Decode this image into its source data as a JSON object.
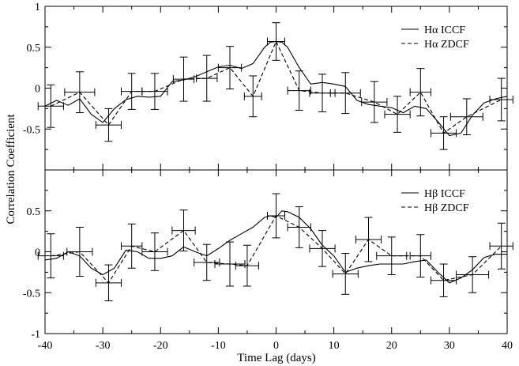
{
  "chart_data": {
    "type": "line",
    "xlabel": "Time Lag (days)",
    "ylabel": "Correlation Coefficient",
    "xlim": [
      -40,
      40
    ],
    "x_ticks": [
      -40,
      -30,
      -20,
      -10,
      0,
      10,
      20,
      30,
      40
    ],
    "x_tick_labels": [
      "-40",
      "-30",
      "-20",
      "-10",
      "0",
      "10",
      "20",
      "30",
      "40"
    ],
    "panels": [
      {
        "id": "halpha",
        "ylim": [
          -1,
          1
        ],
        "y_ticks": [
          1,
          0.5,
          0,
          -0.5
        ],
        "y_tick_labels": [
          "1",
          "0.5",
          "0",
          "-0.5"
        ],
        "legend_position": "top-right",
        "series": [
          {
            "name": "Hα ICCF",
            "style": "solid",
            "x": [
              -40,
              -38,
              -36,
              -34,
              -32,
              -30,
              -28,
              -26,
              -24,
              -22,
              -20,
              -18,
              -16,
              -14,
              -12,
              -10,
              -8,
              -6,
              -4,
              -2,
              -1,
              0,
              1,
              2,
              4,
              6,
              8,
              10,
              12,
              14,
              16,
              18,
              20,
              22,
              24,
              26,
              28,
              30,
              32,
              34,
              36,
              38,
              40
            ],
            "y": [
              -0.22,
              -0.15,
              -0.21,
              -0.13,
              -0.32,
              -0.42,
              -0.25,
              -0.14,
              -0.1,
              -0.11,
              -0.1,
              0.08,
              0.1,
              0.14,
              0.2,
              0.26,
              0.28,
              0.24,
              0.3,
              0.5,
              0.56,
              0.57,
              0.56,
              0.5,
              0.25,
              0.05,
              0.07,
              0.05,
              0.02,
              -0.15,
              -0.2,
              -0.22,
              -0.24,
              -0.3,
              -0.22,
              -0.25,
              -0.41,
              -0.58,
              -0.55,
              -0.33,
              -0.18,
              -0.13,
              -0.1
            ]
          },
          {
            "name": "Hα ZDCF",
            "style": "dashed",
            "x": [
              -39,
              -34,
              -29,
              -25,
              -21,
              -16,
              -12,
              -8,
              -4,
              0,
              4,
              8,
              12,
              17,
              21,
              25,
              29,
              33,
              39
            ],
            "y": [
              -0.22,
              -0.05,
              -0.45,
              -0.04,
              -0.04,
              0.11,
              0.12,
              0.25,
              -0.1,
              0.57,
              -0.03,
              -0.06,
              -0.06,
              -0.17,
              -0.32,
              -0.05,
              -0.55,
              -0.35,
              -0.14
            ],
            "err_y": [
              0.26,
              0.25,
              0.2,
              0.22,
              0.22,
              0.27,
              0.28,
              0.26,
              0.25,
              0.23,
              0.24,
              0.23,
              0.25,
              0.25,
              0.22,
              0.29,
              0.2,
              0.22,
              0.26
            ],
            "err_x": [
              2.2,
              2.6,
              2.2,
              1.8,
              2.2,
              1.8,
              1.8,
              2.0,
              1.5,
              1.5,
              2.0,
              2.2,
              2.6,
              2.2,
              2.2,
              1.8,
              2.2,
              2.8,
              2.0
            ]
          }
        ]
      },
      {
        "id": "hbeta",
        "ylim": [
          -1,
          1
        ],
        "y_ticks": [
          0.5,
          0,
          -0.5,
          -1
        ],
        "y_tick_labels": [
          "0.5",
          "0",
          "-0.5",
          "-1"
        ],
        "legend_position": "top-right",
        "series": [
          {
            "name": "Hβ ICCF",
            "style": "solid",
            "x": [
              -40,
              -38,
              -36,
              -34,
              -32,
              -30,
              -28,
              -26,
              -24,
              -22,
              -20,
              -18,
              -16,
              -14,
              -12,
              -10,
              -8,
              -6,
              -4,
              -2,
              -1,
              0,
              1,
              2,
              4,
              6,
              8,
              10,
              12,
              14,
              16,
              18,
              20,
              22,
              24,
              26,
              28,
              30,
              32,
              34,
              36,
              38,
              40
            ],
            "y": [
              -0.1,
              -0.08,
              0.0,
              -0.05,
              -0.2,
              -0.28,
              -0.2,
              0.02,
              0.0,
              -0.08,
              -0.08,
              -0.05,
              0.06,
              0.0,
              -0.05,
              0.04,
              0.14,
              0.22,
              0.3,
              0.42,
              0.44,
              0.42,
              0.5,
              0.49,
              0.42,
              0.28,
              0.08,
              -0.05,
              -0.25,
              -0.2,
              -0.17,
              -0.15,
              -0.15,
              -0.15,
              -0.12,
              -0.1,
              -0.25,
              -0.38,
              -0.32,
              -0.22,
              -0.07,
              -0.03,
              -0.03
            ]
          },
          {
            "name": "Hβ ZDCF",
            "style": "dashed",
            "x": [
              -39,
              -34,
              -29,
              -25,
              -21,
              -16,
              -12,
              -8,
              -5,
              0,
              4,
              8,
              12,
              16,
              20,
              25,
              29,
              34,
              39
            ],
            "y": [
              -0.05,
              0.0,
              -0.38,
              0.07,
              0.0,
              0.26,
              -0.13,
              -0.15,
              -0.17,
              0.44,
              0.3,
              0.04,
              -0.27,
              0.15,
              -0.05,
              -0.05,
              -0.35,
              -0.28,
              0.07
            ],
            "err_y": [
              0.27,
              0.3,
              0.22,
              0.27,
              0.23,
              0.25,
              0.22,
              0.27,
              0.25,
              0.27,
              0.25,
              0.22,
              0.25,
              0.27,
              0.23,
              0.26,
              0.2,
              0.22,
              0.28
            ],
            "err_x": [
              2.2,
              2.2,
              2.2,
              1.8,
              2.2,
              2.0,
              2.2,
              2.6,
              2.0,
              1.5,
              2.0,
              2.2,
              2.2,
              2.2,
              2.6,
              1.8,
              2.2,
              2.8,
              2.0
            ]
          }
        ]
      }
    ]
  }
}
